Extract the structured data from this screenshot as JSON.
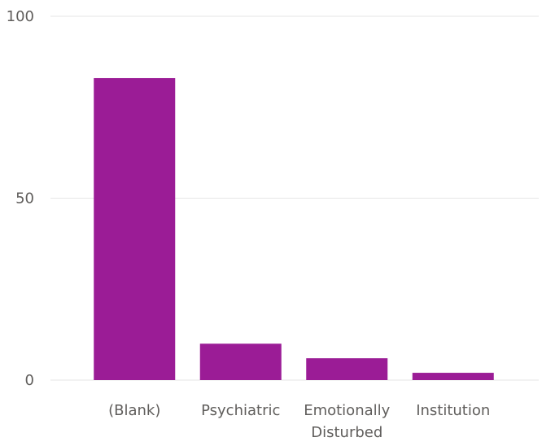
{
  "chart_data": {
    "type": "bar",
    "title": "",
    "xlabel": "",
    "ylabel": "",
    "categories": [
      "(Blank)",
      "Psychiatric",
      "Emotionally Disturbed",
      "Institution"
    ],
    "category_label_lines": [
      [
        "(Blank)"
      ],
      [
        "Psychiatric"
      ],
      [
        "Emotionally",
        "Disturbed"
      ],
      [
        "Institution"
      ]
    ],
    "values": [
      83,
      10,
      6,
      2
    ],
    "ylim": [
      0,
      100
    ],
    "yticks": [
      "0",
      "50",
      "100"
    ],
    "ytick_values": [
      0,
      50,
      100
    ],
    "grid": true,
    "legend": "none",
    "bar_color": "#9b1c96",
    "grid_color": "#e6e6e6",
    "label_color": "#605e5c"
  }
}
